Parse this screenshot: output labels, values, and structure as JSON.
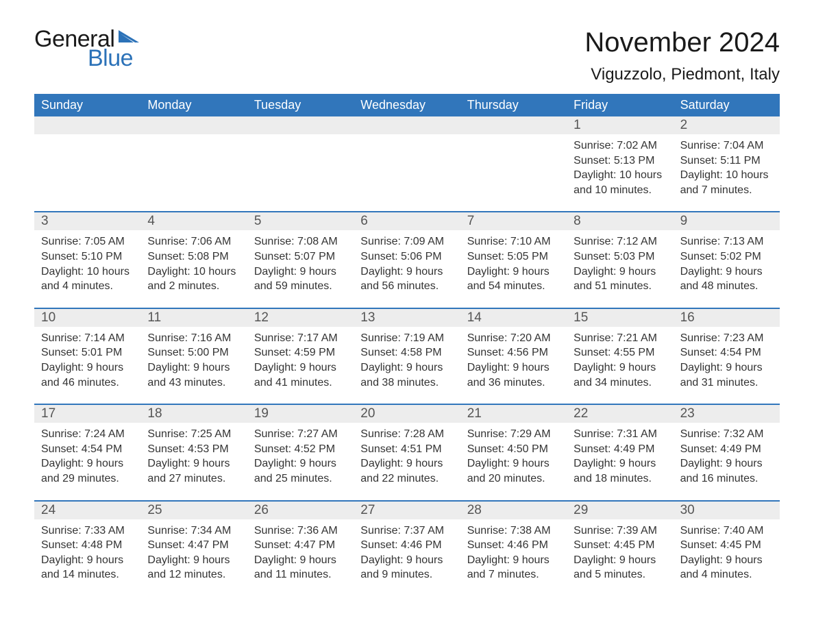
{
  "logo": {
    "word1": "General",
    "word2": "Blue",
    "word1_color": "#1a1a1a",
    "word2_color": "#2c72b8",
    "flag_color": "#2c72b8"
  },
  "title": "November 2024",
  "location": "Viguzzolo, Piedmont, Italy",
  "colors": {
    "header_bg": "#3176bb",
    "header_text": "#ffffff",
    "daynum_bg": "#ededed",
    "row_border": "#3176bb",
    "body_text": "#333333"
  },
  "weekdays": [
    "Sunday",
    "Monday",
    "Tuesday",
    "Wednesday",
    "Thursday",
    "Friday",
    "Saturday"
  ],
  "weeks": [
    [
      null,
      null,
      null,
      null,
      null,
      {
        "n": "1",
        "sr": "Sunrise: 7:02 AM",
        "ss": "Sunset: 5:13 PM",
        "dl": "Daylight: 10 hours and 10 minutes."
      },
      {
        "n": "2",
        "sr": "Sunrise: 7:04 AM",
        "ss": "Sunset: 5:11 PM",
        "dl": "Daylight: 10 hours and 7 minutes."
      }
    ],
    [
      {
        "n": "3",
        "sr": "Sunrise: 7:05 AM",
        "ss": "Sunset: 5:10 PM",
        "dl": "Daylight: 10 hours and 4 minutes."
      },
      {
        "n": "4",
        "sr": "Sunrise: 7:06 AM",
        "ss": "Sunset: 5:08 PM",
        "dl": "Daylight: 10 hours and 2 minutes."
      },
      {
        "n": "5",
        "sr": "Sunrise: 7:08 AM",
        "ss": "Sunset: 5:07 PM",
        "dl": "Daylight: 9 hours and 59 minutes."
      },
      {
        "n": "6",
        "sr": "Sunrise: 7:09 AM",
        "ss": "Sunset: 5:06 PM",
        "dl": "Daylight: 9 hours and 56 minutes."
      },
      {
        "n": "7",
        "sr": "Sunrise: 7:10 AM",
        "ss": "Sunset: 5:05 PM",
        "dl": "Daylight: 9 hours and 54 minutes."
      },
      {
        "n": "8",
        "sr": "Sunrise: 7:12 AM",
        "ss": "Sunset: 5:03 PM",
        "dl": "Daylight: 9 hours and 51 minutes."
      },
      {
        "n": "9",
        "sr": "Sunrise: 7:13 AM",
        "ss": "Sunset: 5:02 PM",
        "dl": "Daylight: 9 hours and 48 minutes."
      }
    ],
    [
      {
        "n": "10",
        "sr": "Sunrise: 7:14 AM",
        "ss": "Sunset: 5:01 PM",
        "dl": "Daylight: 9 hours and 46 minutes."
      },
      {
        "n": "11",
        "sr": "Sunrise: 7:16 AM",
        "ss": "Sunset: 5:00 PM",
        "dl": "Daylight: 9 hours and 43 minutes."
      },
      {
        "n": "12",
        "sr": "Sunrise: 7:17 AM",
        "ss": "Sunset: 4:59 PM",
        "dl": "Daylight: 9 hours and 41 minutes."
      },
      {
        "n": "13",
        "sr": "Sunrise: 7:19 AM",
        "ss": "Sunset: 4:58 PM",
        "dl": "Daylight: 9 hours and 38 minutes."
      },
      {
        "n": "14",
        "sr": "Sunrise: 7:20 AM",
        "ss": "Sunset: 4:56 PM",
        "dl": "Daylight: 9 hours and 36 minutes."
      },
      {
        "n": "15",
        "sr": "Sunrise: 7:21 AM",
        "ss": "Sunset: 4:55 PM",
        "dl": "Daylight: 9 hours and 34 minutes."
      },
      {
        "n": "16",
        "sr": "Sunrise: 7:23 AM",
        "ss": "Sunset: 4:54 PM",
        "dl": "Daylight: 9 hours and 31 minutes."
      }
    ],
    [
      {
        "n": "17",
        "sr": "Sunrise: 7:24 AM",
        "ss": "Sunset: 4:54 PM",
        "dl": "Daylight: 9 hours and 29 minutes."
      },
      {
        "n": "18",
        "sr": "Sunrise: 7:25 AM",
        "ss": "Sunset: 4:53 PM",
        "dl": "Daylight: 9 hours and 27 minutes."
      },
      {
        "n": "19",
        "sr": "Sunrise: 7:27 AM",
        "ss": "Sunset: 4:52 PM",
        "dl": "Daylight: 9 hours and 25 minutes."
      },
      {
        "n": "20",
        "sr": "Sunrise: 7:28 AM",
        "ss": "Sunset: 4:51 PM",
        "dl": "Daylight: 9 hours and 22 minutes."
      },
      {
        "n": "21",
        "sr": "Sunrise: 7:29 AM",
        "ss": "Sunset: 4:50 PM",
        "dl": "Daylight: 9 hours and 20 minutes."
      },
      {
        "n": "22",
        "sr": "Sunrise: 7:31 AM",
        "ss": "Sunset: 4:49 PM",
        "dl": "Daylight: 9 hours and 18 minutes."
      },
      {
        "n": "23",
        "sr": "Sunrise: 7:32 AM",
        "ss": "Sunset: 4:49 PM",
        "dl": "Daylight: 9 hours and 16 minutes."
      }
    ],
    [
      {
        "n": "24",
        "sr": "Sunrise: 7:33 AM",
        "ss": "Sunset: 4:48 PM",
        "dl": "Daylight: 9 hours and 14 minutes."
      },
      {
        "n": "25",
        "sr": "Sunrise: 7:34 AM",
        "ss": "Sunset: 4:47 PM",
        "dl": "Daylight: 9 hours and 12 minutes."
      },
      {
        "n": "26",
        "sr": "Sunrise: 7:36 AM",
        "ss": "Sunset: 4:47 PM",
        "dl": "Daylight: 9 hours and 11 minutes."
      },
      {
        "n": "27",
        "sr": "Sunrise: 7:37 AM",
        "ss": "Sunset: 4:46 PM",
        "dl": "Daylight: 9 hours and 9 minutes."
      },
      {
        "n": "28",
        "sr": "Sunrise: 7:38 AM",
        "ss": "Sunset: 4:46 PM",
        "dl": "Daylight: 9 hours and 7 minutes."
      },
      {
        "n": "29",
        "sr": "Sunrise: 7:39 AM",
        "ss": "Sunset: 4:45 PM",
        "dl": "Daylight: 9 hours and 5 minutes."
      },
      {
        "n": "30",
        "sr": "Sunrise: 7:40 AM",
        "ss": "Sunset: 4:45 PM",
        "dl": "Daylight: 9 hours and 4 minutes."
      }
    ]
  ]
}
